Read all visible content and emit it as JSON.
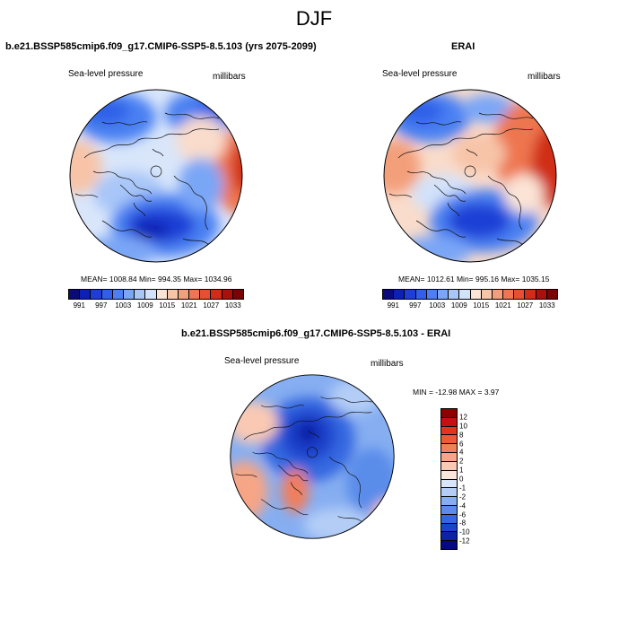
{
  "title": "DJF",
  "panels": {
    "left": {
      "title": "b.e21.BSSP585cmip6.f09_g17.CMIP6-SSP5-8.5.103 (yrs 2075-2099)",
      "var_label": "Sea-level pressure",
      "units": "millibars",
      "stats": "MEAN= 1008.84  Min= 994.35  Max= 1034.96"
    },
    "right": {
      "title": "ERAI",
      "var_label": "Sea-level pressure",
      "units": "millibars",
      "stats": "MEAN= 1012.61  Min= 995.16  Max= 1035.15"
    },
    "diff": {
      "title": "b.e21.BSSP585cmip6.f09_g17.CMIP6-SSP5-8.5.103 - ERAI",
      "var_label": "Sea-level pressure",
      "units": "millibars",
      "stats": "MIN = -12.98 MAX =   3.97"
    }
  },
  "colorbar_slp": {
    "labels": [
      "991",
      "997",
      "1003",
      "1009",
      "1015",
      "1021",
      "1027",
      "1033"
    ],
    "colors": [
      "#0a0a7a",
      "#0c20b4",
      "#1e3fd6",
      "#2f60e8",
      "#4a80f2",
      "#7aa6f6",
      "#a8c6f8",
      "#d2e2fa",
      "#fbe4d6",
      "#f7c4a8",
      "#f39f7a",
      "#ee7650",
      "#e5502e",
      "#d02e14",
      "#a81208",
      "#7a0303"
    ]
  },
  "colorbar_diff": {
    "labels": [
      "12",
      "10",
      "8",
      "6",
      "4",
      "2",
      "1",
      "0",
      "-1",
      "-2",
      "-4",
      "-6",
      "-8",
      "-10",
      "-12"
    ],
    "colors": [
      "#8c0000",
      "#c41010",
      "#e2361b",
      "#ec5a38",
      "#f27e5c",
      "#f6a586",
      "#f9c9b3",
      "#fbe6dc",
      "#d9e6fa",
      "#b3cdf6",
      "#86aef1",
      "#5a8cea",
      "#3568e0",
      "#1c43cc",
      "#0c22a8",
      "#060a7e"
    ]
  }
}
